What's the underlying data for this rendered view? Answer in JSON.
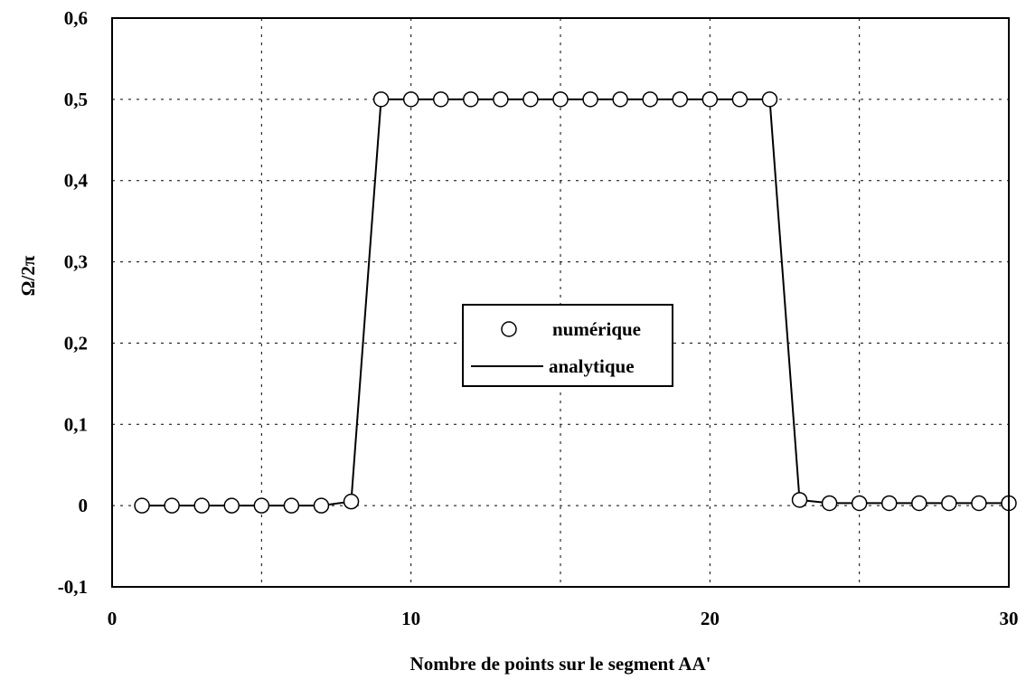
{
  "chart_data": {
    "type": "line",
    "xlabel": "Nombre de points sur le segment AA'",
    "ylabel": "Ω/2π",
    "xlim": [
      0,
      30
    ],
    "ylim": [
      -0.1,
      0.6
    ],
    "x_ticks": [
      0,
      10,
      20,
      30
    ],
    "x_tick_labels": [
      "0",
      "10",
      "20",
      "30"
    ],
    "x_grid": [
      5,
      10,
      15,
      20,
      25
    ],
    "y_ticks": [
      -0.1,
      0,
      0.1,
      0.2,
      0.3,
      0.4,
      0.5,
      0.6
    ],
    "y_tick_labels": [
      "-0,1",
      "0",
      "0,1",
      "0,2",
      "0,3",
      "0,4",
      "0,5",
      "0,6"
    ],
    "grid": true,
    "legend_position": "center",
    "series": [
      {
        "name": "numérique",
        "style": "markers",
        "x": [
          1,
          2,
          3,
          4,
          5,
          6,
          7,
          8,
          9,
          10,
          11,
          12,
          13,
          14,
          15,
          16,
          17,
          18,
          19,
          20,
          21,
          22,
          23,
          24,
          25,
          26,
          27,
          28,
          29,
          30
        ],
        "y": [
          0,
          0,
          0,
          0,
          0,
          0,
          0,
          0.005,
          0.5,
          0.5,
          0.5,
          0.5,
          0.5,
          0.5,
          0.5,
          0.5,
          0.5,
          0.5,
          0.5,
          0.5,
          0.5,
          0.5,
          0.007,
          0.003,
          0.003,
          0.003,
          0.003,
          0.003,
          0.003,
          0.003
        ]
      },
      {
        "name": "analytique",
        "style": "line",
        "x": [
          1,
          2,
          3,
          4,
          5,
          6,
          7,
          8,
          9,
          10,
          11,
          12,
          13,
          14,
          15,
          16,
          17,
          18,
          19,
          20,
          21,
          22,
          23,
          24,
          25,
          26,
          27,
          28,
          29,
          30
        ],
        "y": [
          0,
          0,
          0,
          0,
          0,
          0,
          0,
          0.005,
          0.5,
          0.5,
          0.5,
          0.5,
          0.5,
          0.5,
          0.5,
          0.5,
          0.5,
          0.5,
          0.5,
          0.5,
          0.5,
          0.5,
          0.007,
          0.003,
          0.003,
          0.003,
          0.003,
          0.003,
          0.003,
          0.003
        ]
      }
    ]
  }
}
